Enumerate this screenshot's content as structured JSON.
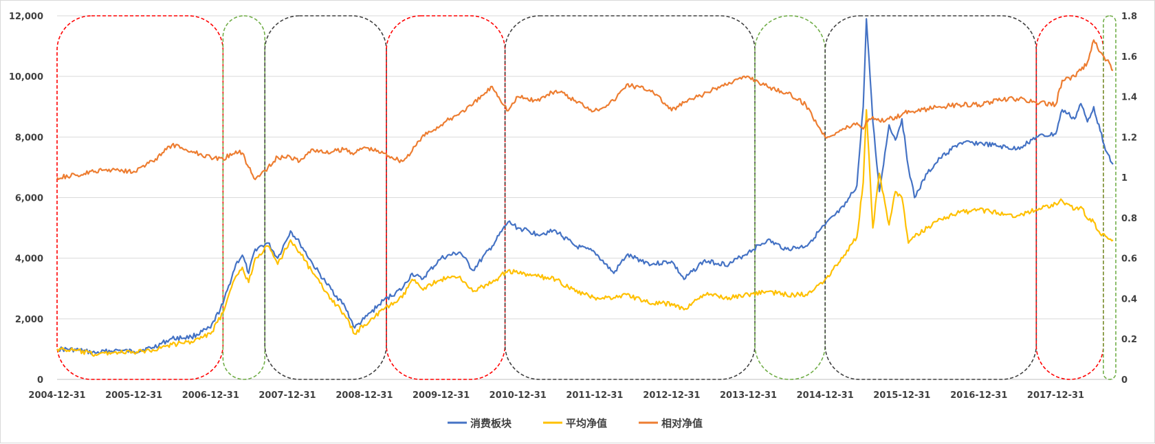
{
  "chart_data": {
    "type": "line",
    "title": "",
    "xlabel": "",
    "ylabel": "",
    "x_start": "2004-12-31",
    "x_end": "2018-09-30",
    "x_tick_labels": [
      "2004-12-31",
      "2005-12-31",
      "2006-12-31",
      "2007-12-31",
      "2008-12-31",
      "2009-12-31",
      "2010-12-31",
      "2011-12-31",
      "2012-12-31",
      "2013-12-31",
      "2014-12-31",
      "2015-12-31",
      "2016-12-31",
      "2017-12-31"
    ],
    "y_left": {
      "min": 0,
      "max": 12000,
      "ticks": [
        "0",
        "2,000",
        "4,000",
        "6,000",
        "8,000",
        "10,000",
        "12,000"
      ]
    },
    "y_right": {
      "min": 0,
      "max": 1.8,
      "ticks": [
        "0",
        "0.2",
        "0.4",
        "0.6",
        "0.8",
        "1",
        "1.2",
        "1.4",
        "1.6",
        "1.8"
      ]
    },
    "grid": "horizontal",
    "legend_position": "bottom",
    "series": [
      {
        "name": "消费板块",
        "axis": "left",
        "color": "#4472c4",
        "points": [
          [
            "2004-12-31",
            1000
          ],
          [
            "2005-03-31",
            980
          ],
          [
            "2005-06-30",
            870
          ],
          [
            "2005-09-30",
            960
          ],
          [
            "2005-12-31",
            920
          ],
          [
            "2006-03-31",
            1050
          ],
          [
            "2006-06-30",
            1350
          ],
          [
            "2006-09-30",
            1400
          ],
          [
            "2006-12-31",
            1700
          ],
          [
            "2007-02-28",
            2500
          ],
          [
            "2007-04-30",
            3800
          ],
          [
            "2007-05-31",
            4100
          ],
          [
            "2007-06-30",
            3500
          ],
          [
            "2007-07-31",
            4300
          ],
          [
            "2007-09-30",
            4500
          ],
          [
            "2007-11-15",
            4000
          ],
          [
            "2008-01-15",
            4900
          ],
          [
            "2008-02-28",
            4500
          ],
          [
            "2008-04-30",
            3800
          ],
          [
            "2008-06-30",
            3200
          ],
          [
            "2008-09-30",
            2400
          ],
          [
            "2008-11-15",
            1700
          ],
          [
            "2008-12-31",
            2000
          ],
          [
            "2009-03-31",
            2600
          ],
          [
            "2009-06-30",
            3000
          ],
          [
            "2009-08-15",
            3500
          ],
          [
            "2009-09-30",
            3300
          ],
          [
            "2009-12-31",
            4000
          ],
          [
            "2010-03-31",
            4200
          ],
          [
            "2010-05-31",
            3600
          ],
          [
            "2010-08-31",
            4400
          ],
          [
            "2010-11-15",
            5200
          ],
          [
            "2010-12-31",
            5000
          ],
          [
            "2011-03-31",
            4800
          ],
          [
            "2011-06-30",
            4900
          ],
          [
            "2011-09-30",
            4400
          ],
          [
            "2011-12-31",
            4200
          ],
          [
            "2012-03-31",
            3500
          ],
          [
            "2012-05-31",
            4100
          ],
          [
            "2012-09-30",
            3800
          ],
          [
            "2012-12-31",
            3900
          ],
          [
            "2013-02-28",
            3300
          ],
          [
            "2013-05-31",
            3900
          ],
          [
            "2013-09-30",
            3800
          ],
          [
            "2013-12-31",
            4200
          ],
          [
            "2014-03-31",
            4600
          ],
          [
            "2014-06-30",
            4300
          ],
          [
            "2014-09-30",
            4400
          ],
          [
            "2014-12-31",
            5100
          ],
          [
            "2015-03-31",
            5700
          ],
          [
            "2015-05-31",
            6400
          ],
          [
            "2015-06-30",
            9000
          ],
          [
            "2015-07-15",
            11900
          ],
          [
            "2015-08-15",
            8500
          ],
          [
            "2015-09-15",
            6200
          ],
          [
            "2015-10-31",
            8400
          ],
          [
            "2015-11-30",
            7900
          ],
          [
            "2015-12-31",
            8600
          ],
          [
            "2016-01-31",
            7000
          ],
          [
            "2016-02-29",
            6000
          ],
          [
            "2016-04-30",
            6800
          ],
          [
            "2016-06-30",
            7300
          ],
          [
            "2016-09-30",
            7800
          ],
          [
            "2016-12-31",
            7800
          ],
          [
            "2017-03-31",
            7700
          ],
          [
            "2017-06-30",
            7600
          ],
          [
            "2017-09-30",
            8000
          ],
          [
            "2017-12-31",
            8100
          ],
          [
            "2018-01-31",
            8900
          ],
          [
            "2018-03-31",
            8600
          ],
          [
            "2018-04-30",
            9100
          ],
          [
            "2018-05-31",
            8500
          ],
          [
            "2018-06-30",
            9000
          ],
          [
            "2018-07-31",
            8200
          ],
          [
            "2018-08-31",
            7500
          ],
          [
            "2018-09-30",
            7100
          ]
        ]
      },
      {
        "name": "平均净值",
        "axis": "left",
        "color": "#ffc000",
        "points": [
          [
            "2004-12-31",
            1000
          ],
          [
            "2005-03-31",
            950
          ],
          [
            "2005-06-30",
            820
          ],
          [
            "2005-09-30",
            900
          ],
          [
            "2005-12-31",
            880
          ],
          [
            "2006-03-31",
            980
          ],
          [
            "2006-06-30",
            1150
          ],
          [
            "2006-09-30",
            1250
          ],
          [
            "2006-12-31",
            1500
          ],
          [
            "2007-02-28",
            2200
          ],
          [
            "2007-04-30",
            3400
          ],
          [
            "2007-05-31",
            3700
          ],
          [
            "2007-06-30",
            3200
          ],
          [
            "2007-07-31",
            4000
          ],
          [
            "2007-09-30",
            4400
          ],
          [
            "2007-11-15",
            3800
          ],
          [
            "2008-01-15",
            4600
          ],
          [
            "2008-02-28",
            4200
          ],
          [
            "2008-04-30",
            3500
          ],
          [
            "2008-06-30",
            2900
          ],
          [
            "2008-09-30",
            2100
          ],
          [
            "2008-11-15",
            1500
          ],
          [
            "2008-12-31",
            1800
          ],
          [
            "2009-03-31",
            2300
          ],
          [
            "2009-06-30",
            2700
          ],
          [
            "2009-08-15",
            3300
          ],
          [
            "2009-09-30",
            3000
          ],
          [
            "2009-12-31",
            3300
          ],
          [
            "2010-03-31",
            3400
          ],
          [
            "2010-05-31",
            2900
          ],
          [
            "2010-08-31",
            3200
          ],
          [
            "2010-11-15",
            3600
          ],
          [
            "2010-12-31",
            3500
          ],
          [
            "2011-03-31",
            3400
          ],
          [
            "2011-06-30",
            3300
          ],
          [
            "2011-09-30",
            2900
          ],
          [
            "2011-12-31",
            2700
          ],
          [
            "2012-03-31",
            2700
          ],
          [
            "2012-05-31",
            2800
          ],
          [
            "2012-09-30",
            2500
          ],
          [
            "2012-12-31",
            2500
          ],
          [
            "2013-02-28",
            2300
          ],
          [
            "2013-05-31",
            2800
          ],
          [
            "2013-09-30",
            2700
          ],
          [
            "2013-12-31",
            2800
          ],
          [
            "2014-03-31",
            2900
          ],
          [
            "2014-06-30",
            2800
          ],
          [
            "2014-09-30",
            2800
          ],
          [
            "2014-12-31",
            3300
          ],
          [
            "2015-03-31",
            4100
          ],
          [
            "2015-05-31",
            4700
          ],
          [
            "2015-06-30",
            6500
          ],
          [
            "2015-07-15",
            8900
          ],
          [
            "2015-08-15",
            5000
          ],
          [
            "2015-09-15",
            6800
          ],
          [
            "2015-10-31",
            5100
          ],
          [
            "2015-11-30",
            6200
          ],
          [
            "2015-12-31",
            6000
          ],
          [
            "2016-01-31",
            4500
          ],
          [
            "2016-02-29",
            4700
          ],
          [
            "2016-04-30",
            5000
          ],
          [
            "2016-06-30",
            5300
          ],
          [
            "2016-09-30",
            5500
          ],
          [
            "2016-12-31",
            5600
          ],
          [
            "2017-03-31",
            5500
          ],
          [
            "2017-06-30",
            5400
          ],
          [
            "2017-09-30",
            5600
          ],
          [
            "2017-12-31",
            5800
          ],
          [
            "2018-01-31",
            5900
          ],
          [
            "2018-03-31",
            5600
          ],
          [
            "2018-04-30",
            5700
          ],
          [
            "2018-05-31",
            5300
          ],
          [
            "2018-06-30",
            5200
          ],
          [
            "2018-07-31",
            4800
          ],
          [
            "2018-08-31",
            4700
          ],
          [
            "2018-09-30",
            4600
          ]
        ]
      },
      {
        "name": "相对净值",
        "axis": "right",
        "color": "#ed7d31",
        "points": [
          [
            "2004-12-31",
            1.0
          ],
          [
            "2005-03-31",
            1.01
          ],
          [
            "2005-06-30",
            1.03
          ],
          [
            "2005-09-30",
            1.04
          ],
          [
            "2005-12-31",
            1.03
          ],
          [
            "2006-03-31",
            1.08
          ],
          [
            "2006-06-30",
            1.16
          ],
          [
            "2006-09-30",
            1.13
          ],
          [
            "2006-12-31",
            1.1
          ],
          [
            "2007-02-28",
            1.09
          ],
          [
            "2007-04-30",
            1.13
          ],
          [
            "2007-05-31",
            1.12
          ],
          [
            "2007-06-30",
            1.05
          ],
          [
            "2007-07-31",
            0.99
          ],
          [
            "2007-09-30",
            1.05
          ],
          [
            "2007-11-15",
            1.1
          ],
          [
            "2008-01-15",
            1.1
          ],
          [
            "2008-02-28",
            1.08
          ],
          [
            "2008-04-30",
            1.14
          ],
          [
            "2008-06-30",
            1.12
          ],
          [
            "2008-09-30",
            1.14
          ],
          [
            "2008-11-15",
            1.12
          ],
          [
            "2008-12-31",
            1.15
          ],
          [
            "2009-03-31",
            1.12
          ],
          [
            "2009-06-30",
            1.08
          ],
          [
            "2009-08-15",
            1.13
          ],
          [
            "2009-09-30",
            1.2
          ],
          [
            "2009-12-31",
            1.26
          ],
          [
            "2010-03-31",
            1.32
          ],
          [
            "2010-05-31",
            1.36
          ],
          [
            "2010-08-31",
            1.45
          ],
          [
            "2010-11-15",
            1.33
          ],
          [
            "2010-12-31",
            1.4
          ],
          [
            "2011-03-31",
            1.38
          ],
          [
            "2011-06-30",
            1.43
          ],
          [
            "2011-09-30",
            1.38
          ],
          [
            "2011-12-31",
            1.33
          ],
          [
            "2012-03-31",
            1.38
          ],
          [
            "2012-05-31",
            1.46
          ],
          [
            "2012-09-30",
            1.43
          ],
          [
            "2012-12-31",
            1.33
          ],
          [
            "2013-02-28",
            1.37
          ],
          [
            "2013-05-31",
            1.41
          ],
          [
            "2013-09-30",
            1.47
          ],
          [
            "2013-12-31",
            1.5
          ],
          [
            "2014-03-31",
            1.45
          ],
          [
            "2014-06-30",
            1.42
          ],
          [
            "2014-09-30",
            1.36
          ],
          [
            "2014-12-31",
            1.2
          ],
          [
            "2015-03-31",
            1.24
          ],
          [
            "2015-05-31",
            1.27
          ],
          [
            "2015-06-30",
            1.24
          ],
          [
            "2015-07-15",
            1.28
          ],
          [
            "2015-08-15",
            1.3
          ],
          [
            "2015-09-15",
            1.28
          ],
          [
            "2015-10-31",
            1.29
          ],
          [
            "2015-11-30",
            1.3
          ],
          [
            "2015-12-31",
            1.31
          ],
          [
            "2016-01-31",
            1.33
          ],
          [
            "2016-02-29",
            1.32
          ],
          [
            "2016-04-30",
            1.34
          ],
          [
            "2016-06-30",
            1.35
          ],
          [
            "2016-09-30",
            1.36
          ],
          [
            "2016-12-31",
            1.36
          ],
          [
            "2017-03-31",
            1.38
          ],
          [
            "2017-06-30",
            1.39
          ],
          [
            "2017-09-30",
            1.37
          ],
          [
            "2017-12-31",
            1.36
          ],
          [
            "2018-01-31",
            1.48
          ],
          [
            "2018-03-31",
            1.5
          ],
          [
            "2018-04-30",
            1.53
          ],
          [
            "2018-05-31",
            1.57
          ],
          [
            "2018-06-30",
            1.68
          ],
          [
            "2018-07-31",
            1.62
          ],
          [
            "2018-08-31",
            1.58
          ],
          [
            "2018-09-30",
            1.53
          ]
        ]
      }
    ],
    "annotations": [
      {
        "start": "2004-12-31",
        "end": "2007-02-28",
        "color": "#ff0000"
      },
      {
        "start": "2007-02-28",
        "end": "2007-09-15",
        "color": "#70ad47"
      },
      {
        "start": "2007-09-15",
        "end": "2009-04-15",
        "color": "#404040"
      },
      {
        "start": "2009-04-15",
        "end": "2010-10-31",
        "color": "#ff0000"
      },
      {
        "start": "2010-10-31",
        "end": "2014-01-31",
        "color": "#404040"
      },
      {
        "start": "2014-01-31",
        "end": "2014-12-31",
        "color": "#70ad47"
      },
      {
        "start": "2014-12-31",
        "end": "2017-09-30",
        "color": "#404040"
      },
      {
        "start": "2017-09-30",
        "end": "2018-08-15",
        "color": "#ff0000"
      },
      {
        "start": "2018-08-15",
        "end": "2018-10-15",
        "color": "#70ad47"
      }
    ]
  }
}
